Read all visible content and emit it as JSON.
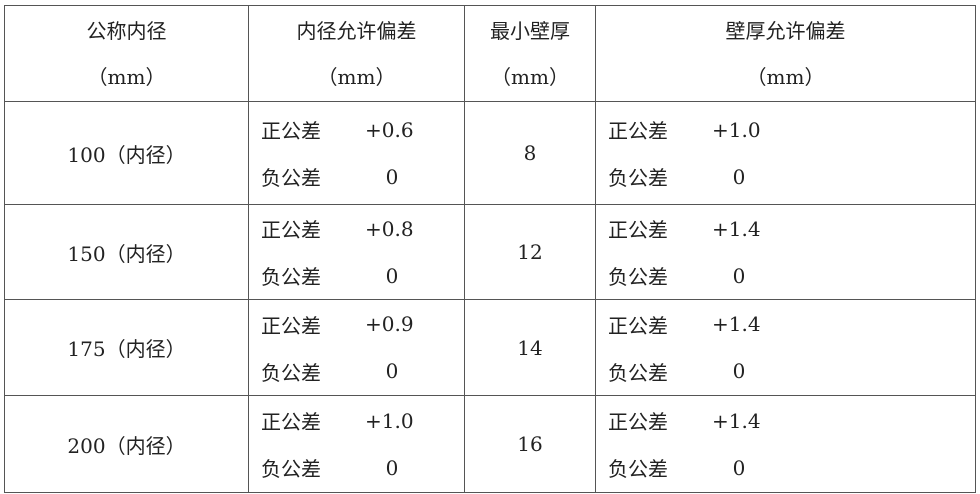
{
  "headers": [
    {
      "title": "公称内径",
      "unit": "（mm）"
    },
    {
      "title": "内径允许偏差",
      "unit": "（mm）"
    },
    {
      "title": "最小壁厚",
      "unit": "（mm）"
    },
    {
      "title": "壁厚允许偏差",
      "unit": "（mm）"
    }
  ],
  "labels": {
    "pos": "正公差",
    "neg": "负公差"
  },
  "rows": [
    {
      "diameter": "100（内径）",
      "id_pos": "+0.6",
      "id_neg": "0",
      "wall": "8",
      "wall_pos": "+1.0",
      "wall_neg": "0"
    },
    {
      "diameter": "150（内径）",
      "id_pos": "+0.8",
      "id_neg": "0",
      "wall": "12",
      "wall_pos": "+1.4",
      "wall_neg": "0"
    },
    {
      "diameter": "175（内径）",
      "id_pos": "+0.9",
      "id_neg": "0",
      "wall": "14",
      "wall_pos": "+1.4",
      "wall_neg": "0"
    },
    {
      "diameter": "200（内径）",
      "id_pos": "+1.0",
      "id_neg": "0",
      "wall": "16",
      "wall_pos": "+1.4",
      "wall_neg": "0"
    }
  ]
}
